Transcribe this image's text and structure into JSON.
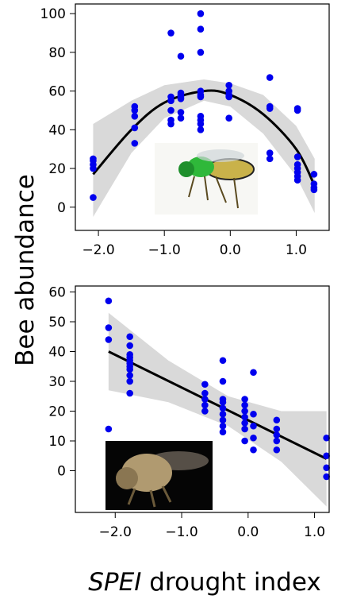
{
  "y_label": "Bee abundance",
  "x_label_italic": "SPEI",
  "x_label": "drought index",
  "chart_data": [
    {
      "type": "scatter",
      "color": "#0000ee",
      "x": [
        -2.08,
        -2.08,
        -2.08,
        -2.08,
        -2.08,
        -1.45,
        -1.45,
        -1.45,
        -1.45,
        -1.45,
        -0.9,
        -0.9,
        -0.9,
        -0.9,
        -0.9,
        -0.9,
        -0.75,
        -0.75,
        -0.75,
        -0.75,
        -0.75,
        -0.75,
        -0.75,
        -0.45,
        -0.45,
        -0.45,
        -0.45,
        -0.45,
        -0.45,
        -0.45,
        -0.45,
        -0.45,
        -0.45,
        -0.02,
        -0.02,
        -0.02,
        -0.02,
        -0.02,
        0.6,
        0.6,
        0.6,
        0.6,
        0.6,
        1.02,
        1.02,
        1.02,
        1.02,
        1.02,
        1.02,
        1.02,
        1.02,
        1.27,
        1.27,
        1.27,
        1.27
      ],
      "values": [
        5,
        20,
        22,
        24,
        25,
        33,
        41,
        47,
        50,
        52,
        43,
        45,
        50,
        55,
        57,
        90,
        46,
        49,
        56,
        57,
        58,
        59,
        78,
        40,
        43,
        45,
        47,
        57,
        58,
        60,
        80,
        92,
        100,
        46,
        57,
        58,
        60,
        63,
        25,
        28,
        51,
        52,
        67,
        14,
        16,
        18,
        20,
        22,
        26,
        50,
        51,
        9,
        10,
        12,
        17
      ],
      "fit": {
        "x": [
          -2.08,
          -1.5,
          -1,
          -0.4,
          0,
          0.5,
          1,
          1.28
        ],
        "values": [
          17,
          40,
          54,
          60,
          58,
          48,
          30,
          11
        ]
      },
      "band": {
        "x": [
          -2.08,
          -1.5,
          -1,
          -0.4,
          0,
          0.5,
          1,
          1.28
        ],
        "upper": [
          43,
          55,
          63,
          66,
          64,
          58,
          42,
          25
        ],
        "lower": [
          -5,
          28,
          46,
          55,
          52,
          38,
          16,
          -3
        ]
      },
      "xlim": [
        -2.35,
        1.5
      ],
      "ylim": [
        -12,
        105
      ],
      "xticks": [
        {
          "value": -2,
          "label": "−2.0"
        },
        {
          "value": -1,
          "label": "−1.0"
        },
        {
          "value": 0,
          "label": "0.0"
        },
        {
          "value": 1,
          "label": "1.0"
        }
      ],
      "yticks": [
        0,
        20,
        40,
        60,
        80,
        100
      ]
    },
    {
      "type": "scatter",
      "color": "#0000ee",
      "x": [
        -2.1,
        -2.1,
        -2.1,
        -2.1,
        -1.78,
        -1.78,
        -1.78,
        -1.78,
        -1.78,
        -1.78,
        -1.78,
        -1.78,
        -1.78,
        -1.78,
        -1.78,
        -0.65,
        -0.65,
        -0.65,
        -0.65,
        -0.65,
        -0.38,
        -0.38,
        -0.38,
        -0.38,
        -0.38,
        -0.38,
        -0.38,
        -0.38,
        -0.38,
        -0.05,
        -0.05,
        -0.05,
        -0.05,
        -0.05,
        -0.05,
        -0.05,
        0.08,
        0.08,
        0.08,
        0.08,
        0.08,
        0.43,
        0.43,
        0.43,
        0.43,
        0.43,
        1.18,
        1.18,
        1.18,
        1.18
      ],
      "values": [
        14,
        44,
        48,
        57,
        26,
        30,
        32,
        34,
        35,
        36,
        37,
        38,
        39,
        42,
        45,
        20,
        22,
        24,
        26,
        29,
        13,
        15,
        17,
        19,
        21,
        23,
        24,
        30,
        37,
        10,
        14,
        16,
        18,
        20,
        22,
        24,
        7,
        11,
        15,
        19,
        33,
        7,
        10,
        12,
        14,
        17,
        -2,
        1,
        5,
        11
      ],
      "fit": {
        "x": [
          -2.1,
          1.18
        ],
        "values": [
          40,
          4
        ]
      },
      "band": {
        "x": [
          -2.1,
          -1.2,
          -0.3,
          0.5,
          1.18
        ],
        "upper": [
          53,
          37,
          25,
          20,
          20
        ],
        "lower": [
          27,
          23,
          15,
          3,
          -12
        ]
      },
      "xlim": [
        -2.6,
        1.22
      ],
      "ylim": [
        -14,
        62
      ],
      "xticks": [
        {
          "value": -2,
          "label": "−2.0"
        },
        {
          "value": -1,
          "label": "−1.0"
        },
        {
          "value": 0,
          "label": "0.0"
        },
        {
          "value": 1,
          "label": "1.0"
        }
      ],
      "yticks": [
        0,
        10,
        20,
        30,
        40,
        50,
        60
      ]
    }
  ]
}
